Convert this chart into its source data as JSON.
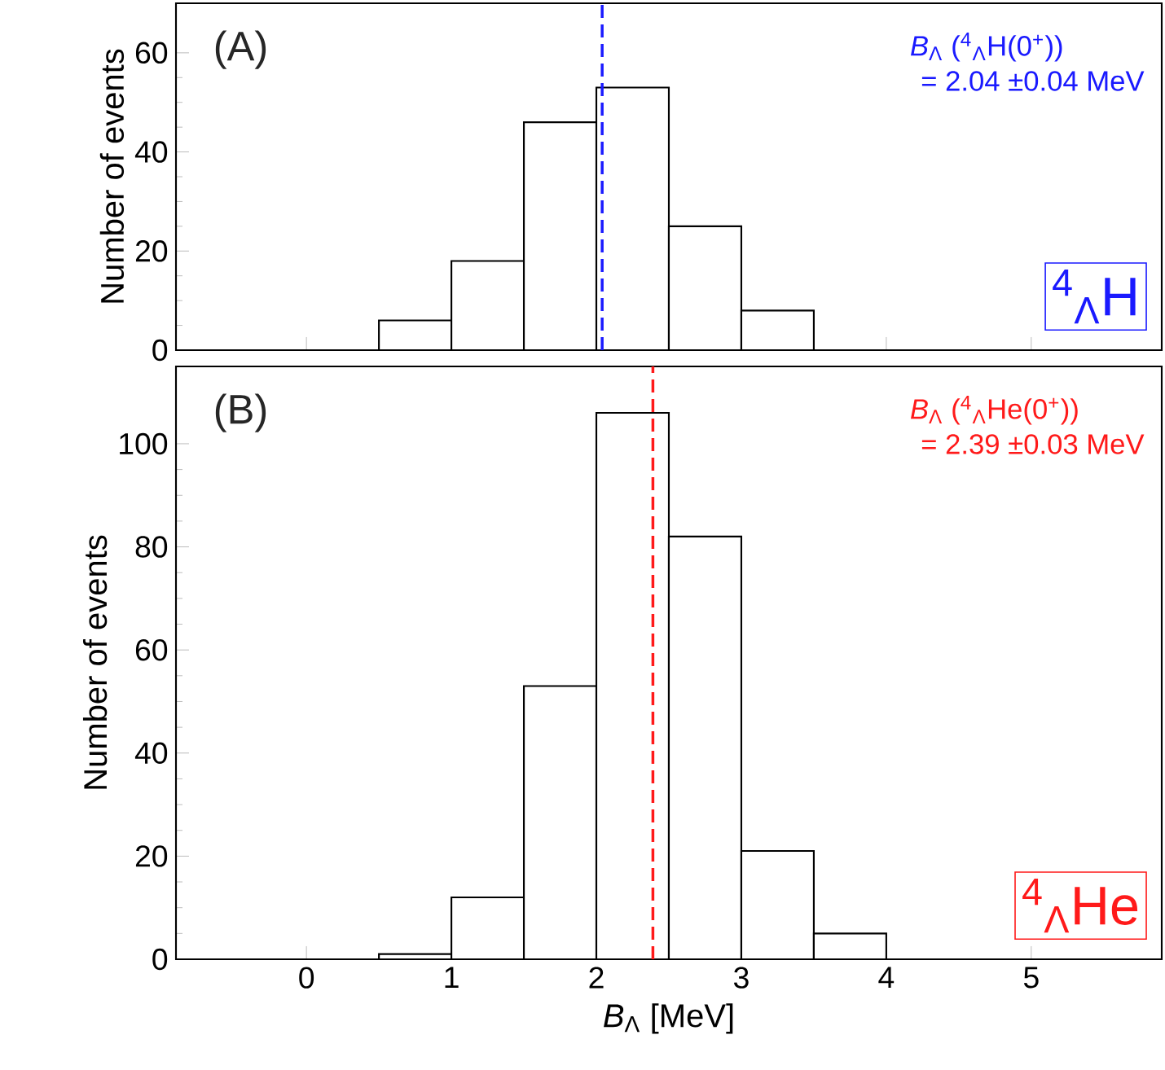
{
  "chart_data": [
    {
      "type": "histogram",
      "bins": [
        0.5,
        1.0,
        1.5,
        2.0,
        2.5,
        3.0,
        3.5
      ],
      "values": [
        6,
        18,
        46,
        53,
        25,
        8
      ],
      "color": "#000000",
      "xlim": [
        -0.9,
        5.9
      ],
      "ylim": [
        0,
        70
      ],
      "xticks": [
        0,
        1,
        2,
        3,
        4,
        5
      ],
      "yticks": [
        0,
        20,
        40,
        60
      ],
      "tick_labels": "y",
      "ylabel": "Number of events",
      "ref_lines": [
        {
          "axis": "x",
          "value": 2.04,
          "color": "#1a1aff",
          "line_style": "dashed"
        }
      ],
      "annotations": [
        "(A)",
        "*B*$_{Λ}$ ($^{4}$$_{Λ}$H(0$^{+}$))",
        "= 2.04 ±0.04 MeV",
        "$^{4}$$_{Λ}$H"
      ]
    },
    {
      "type": "histogram",
      "bins": [
        0.5,
        1.0,
        1.5,
        2.0,
        2.5,
        3.0,
        3.5,
        4.0
      ],
      "values": [
        1,
        12,
        53,
        106,
        82,
        21,
        5
      ],
      "color": "#000000",
      "xlim": [
        -0.9,
        5.9
      ],
      "ylim": [
        0,
        115
      ],
      "xticks": [
        0,
        1,
        2,
        3,
        4,
        5
      ],
      "yticks": [
        0,
        20,
        40,
        60,
        80,
        100
      ],
      "xlabel": "*B*$_{Λ}$ [MeV]",
      "ylabel": "Number of events",
      "ref_lines": [
        {
          "axis": "x",
          "value": 2.39,
          "color": "#ff1a1a",
          "line_style": "dashed"
        }
      ],
      "annotations": [
        "(B)",
        "*B*$_{Λ}$ ($^{4}$$_{Λ}$He(0$^{+}$))",
        "= 2.39 ±0.03 MeV",
        "$^{4}$$_{Λ}$He"
      ]
    }
  ]
}
